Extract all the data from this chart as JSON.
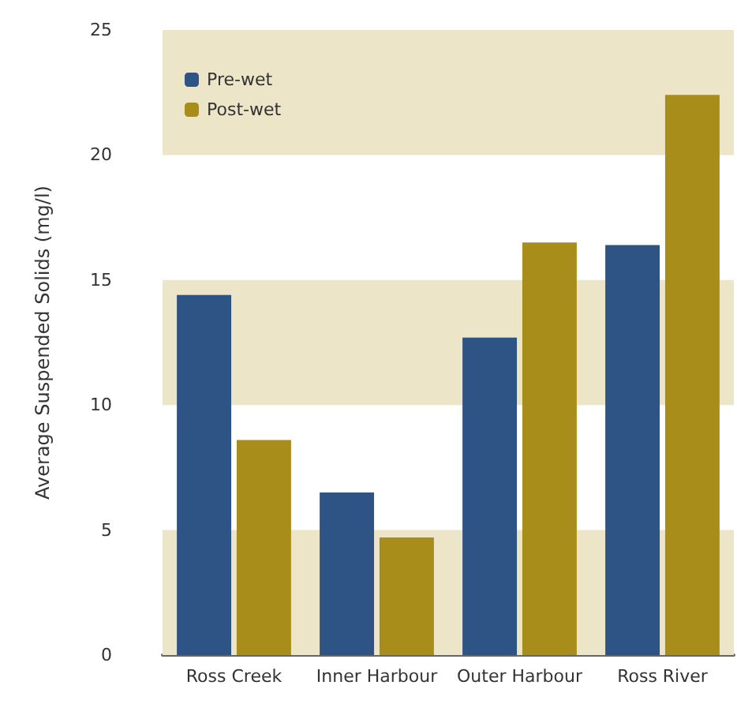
{
  "chart_data": {
    "type": "bar",
    "ylabel": "Average Suspended Solids (mg/l)",
    "categories": [
      "Ross Creek",
      "Inner Harbour",
      "Outer Harbour",
      "Ross River"
    ],
    "series": [
      {
        "name": "Pre-wet",
        "color": "#2e5385",
        "values": [
          14.4,
          6.5,
          12.7,
          16.4
        ]
      },
      {
        "name": "Post-wet",
        "color": "#a88d1a",
        "values": [
          8.6,
          4.7,
          16.5,
          22.4
        ]
      }
    ],
    "ylim": [
      0,
      25
    ],
    "yticks": [
      0,
      5,
      10,
      15,
      20,
      25
    ],
    "grid": false,
    "legend": "top left",
    "bands": [
      {
        "axis": "y",
        "from": 0,
        "to": 5,
        "color": "#ede5c8"
      },
      {
        "axis": "y",
        "from": 10,
        "to": 15,
        "color": "#ede5c8"
      },
      {
        "axis": "y",
        "from": 20,
        "to": 25,
        "color": "#ede5c8"
      }
    ]
  }
}
